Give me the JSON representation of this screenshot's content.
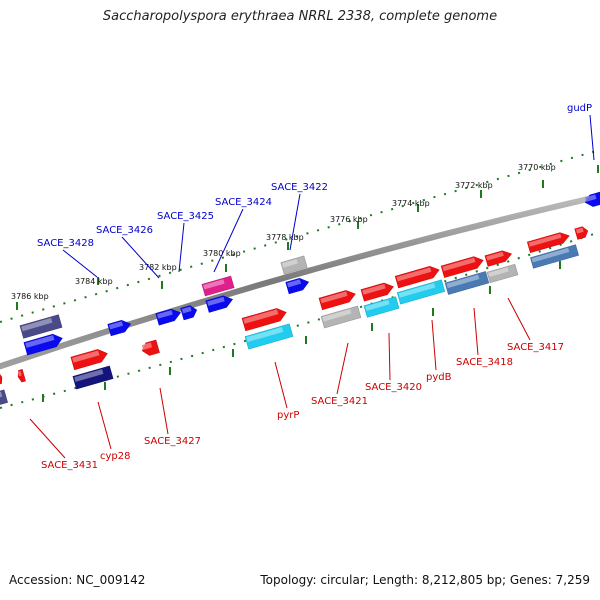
{
  "title": "Saccharopolyspora erythraea NRRL 2338, complete genome",
  "footer": {
    "accession": "Accession: NC_009142",
    "summary": "Topology: circular; Length: 8,212,805 bp; Genes: 7,259"
  },
  "colors": {
    "backbone": "#808080",
    "tick": "#1f7a1f",
    "forward_label": "#0000cc",
    "reverse_label": "#cc0000",
    "gene_red": "#ee1111",
    "gene_blue": "#0a0aee",
    "gene_navy": "#4a4a8a",
    "gene_darknavy": "#14147a",
    "gene_cyan": "#22ccee",
    "gene_steel": "#4a7ab4",
    "gene_gray": "#b4b4b4",
    "gene_pink": "#e0208a"
  },
  "scale_labels": [
    {
      "text": "3786 kbp"
    },
    {
      "text": "3784 kbp"
    },
    {
      "text": "3782 kbp"
    },
    {
      "text": "3780 kbp"
    },
    {
      "text": "3778 kbp"
    },
    {
      "text": "3776 kbp"
    },
    {
      "text": "3774 kbp"
    },
    {
      "text": "3772 kbp"
    },
    {
      "text": "3770 kbp"
    }
  ],
  "forward_gene_labels": [
    "gudP",
    "SACE_3422",
    "SACE_3424",
    "SACE_3425",
    "SACE_3426",
    "SACE_3428"
  ],
  "reverse_gene_labels": [
    "SACE_3417",
    "SACE_3418",
    "pydB",
    "SACE_3420",
    "SACE_3421",
    "pyrP",
    "SACE_3427",
    "cyp28",
    "SACE_3431"
  ]
}
